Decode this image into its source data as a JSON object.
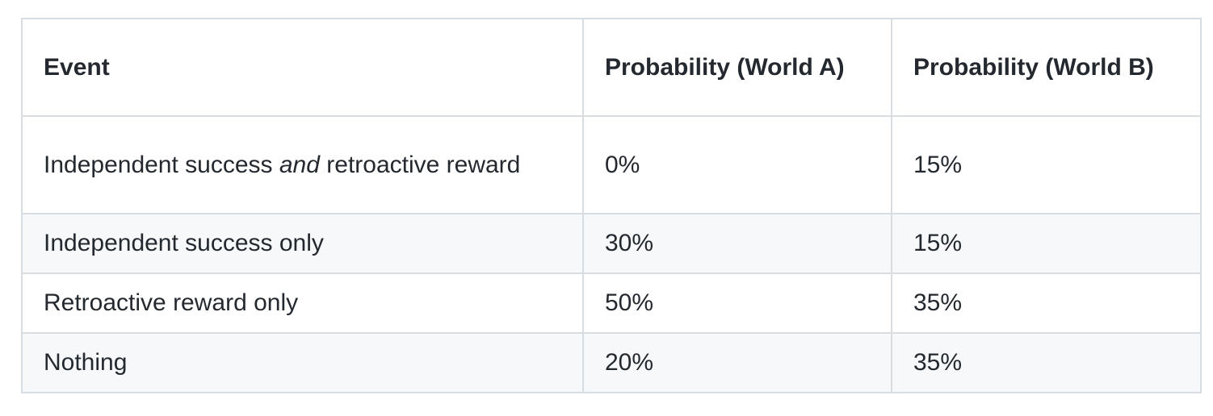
{
  "table": {
    "headers": [
      "Event",
      "Probability (World A)",
      "Probability (World B)"
    ],
    "rows": [
      {
        "event_pre": "Independent success ",
        "event_em": "and",
        "event_post": " retroactive reward",
        "world_a": "0%",
        "world_b": "15%"
      },
      {
        "event": "Independent success only",
        "world_a": "30%",
        "world_b": "15%"
      },
      {
        "event": "Retroactive reward only",
        "world_a": "50%",
        "world_b": "35%"
      },
      {
        "event": "Nothing",
        "world_a": "20%",
        "world_b": "35%"
      }
    ]
  }
}
